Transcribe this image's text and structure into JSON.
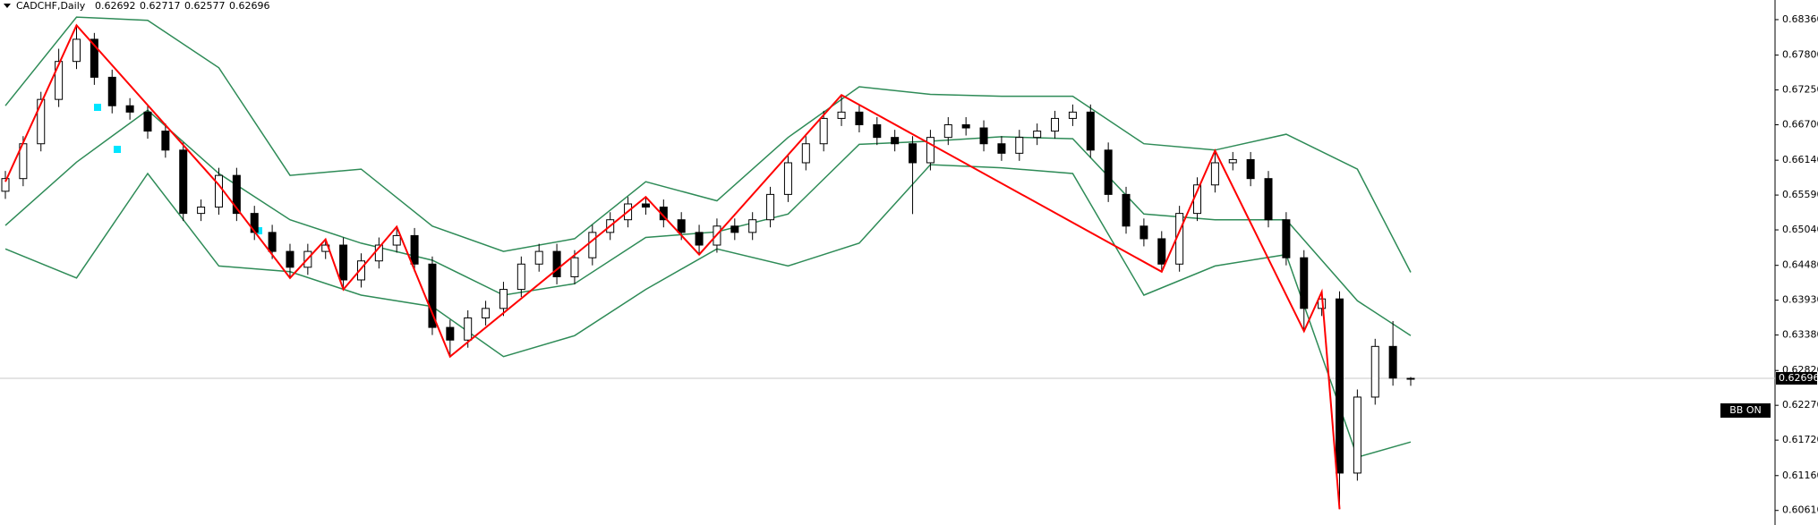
{
  "chart_data": {
    "type": "candlestick",
    "title": "CADCHF,Daily",
    "indicator_label": "BB ON",
    "up_color": "#ffffff",
    "down_color": "#000000",
    "ylim": [
      0.6038,
      0.6867
    ],
    "yticks": [
      {
        "value": 0.6836,
        "label": "0.68360"
      },
      {
        "value": 0.678,
        "label": "0.67800"
      },
      {
        "value": 0.6725,
        "label": "0.67250"
      },
      {
        "value": 0.667,
        "label": "0.66700"
      },
      {
        "value": 0.6614,
        "label": "0.66140"
      },
      {
        "value": 0.6559,
        "label": "0.65590"
      },
      {
        "value": 0.6504,
        "label": "0.65040"
      },
      {
        "value": 0.6448,
        "label": "0.64480"
      },
      {
        "value": 0.6393,
        "label": "0.63930"
      },
      {
        "value": 0.6338,
        "label": "0.63380"
      },
      {
        "value": 0.6282,
        "label": "0.62820"
      },
      {
        "value": 0.6227,
        "label": "0.62270"
      },
      {
        "value": 0.6172,
        "label": "0.61720"
      },
      {
        "value": 0.6116,
        "label": "0.61160"
      },
      {
        "value": 0.6061,
        "label": "0.60610"
      }
    ],
    "open": [
      0.6565,
      0.6585,
      0.664,
      0.671,
      0.677,
      0.6805,
      0.6745,
      0.67,
      0.669,
      0.666,
      0.663,
      0.653,
      0.654,
      0.659,
      0.653,
      0.65,
      0.647,
      0.6445,
      0.647,
      0.648,
      0.6425,
      0.6455,
      0.648,
      0.6495,
      0.645,
      0.635,
      0.633,
      0.6365,
      0.638,
      0.641,
      0.645,
      0.647,
      0.643,
      0.646,
      0.65,
      0.652,
      0.6545,
      0.654,
      0.652,
      0.65,
      0.648,
      0.651,
      0.65,
      0.652,
      0.656,
      0.661,
      0.664,
      0.668,
      0.669,
      0.667,
      0.665,
      0.664,
      0.661,
      0.665,
      0.667,
      0.6665,
      0.664,
      0.6625,
      0.665,
      0.666,
      0.668,
      0.669,
      0.663,
      0.656,
      0.651,
      0.649,
      0.645,
      0.653,
      0.6575,
      0.661,
      0.6615,
      0.6585,
      0.652,
      0.646,
      0.638,
      0.6395,
      0.612,
      0.624,
      0.632,
      0.62692
    ],
    "high": [
      0.6597,
      0.6652,
      0.6722,
      0.679,
      0.6827,
      0.6815,
      0.6757,
      0.6712,
      0.6702,
      0.6672,
      0.6642,
      0.6552,
      0.6602,
      0.6602,
      0.6542,
      0.6512,
      0.6482,
      0.6482,
      0.6489,
      0.6492,
      0.6467,
      0.6492,
      0.6509,
      0.6507,
      0.6462,
      0.6362,
      0.6377,
      0.6392,
      0.6422,
      0.6462,
      0.6482,
      0.6482,
      0.6472,
      0.6512,
      0.6532,
      0.6556,
      0.6557,
      0.6552,
      0.6532,
      0.6512,
      0.6522,
      0.6522,
      0.6532,
      0.6572,
      0.6622,
      0.6652,
      0.6692,
      0.6717,
      0.6702,
      0.6682,
      0.6662,
      0.6652,
      0.6662,
      0.6682,
      0.6682,
      0.6677,
      0.6652,
      0.6662,
      0.6672,
      0.6692,
      0.6702,
      0.6702,
      0.6642,
      0.6572,
      0.6522,
      0.6502,
      0.6542,
      0.6587,
      0.6629,
      0.6627,
      0.6627,
      0.6597,
      0.6532,
      0.6472,
      0.6406,
      0.6407,
      0.6252,
      0.6332,
      0.636,
      0.62717
    ],
    "low": [
      0.6553,
      0.6573,
      0.6628,
      0.6698,
      0.6758,
      0.6733,
      0.6688,
      0.6678,
      0.6648,
      0.6618,
      0.6518,
      0.6518,
      0.6528,
      0.6518,
      0.6488,
      0.6458,
      0.6428,
      0.6433,
      0.6458,
      0.641,
      0.6413,
      0.6443,
      0.6468,
      0.6438,
      0.6338,
      0.6304,
      0.6318,
      0.6353,
      0.6368,
      0.6398,
      0.6438,
      0.6418,
      0.6418,
      0.6448,
      0.6488,
      0.6508,
      0.6528,
      0.6508,
      0.6488,
      0.6465,
      0.6468,
      0.6488,
      0.6488,
      0.6508,
      0.6548,
      0.6598,
      0.6628,
      0.6668,
      0.6658,
      0.6638,
      0.6628,
      0.6529,
      0.6598,
      0.6638,
      0.6653,
      0.6628,
      0.6613,
      0.6613,
      0.6638,
      0.6648,
      0.6668,
      0.6618,
      0.6548,
      0.6498,
      0.6478,
      0.6438,
      0.6438,
      0.6518,
      0.6563,
      0.6598,
      0.6573,
      0.6508,
      0.6448,
      0.6344,
      0.6368,
      0.6063,
      0.6108,
      0.6228,
      0.6258,
      0.62577
    ],
    "close": [
      0.6585,
      0.664,
      0.671,
      0.677,
      0.6805,
      0.6745,
      0.67,
      0.669,
      0.666,
      0.663,
      0.653,
      0.654,
      0.659,
      0.653,
      0.65,
      0.647,
      0.6445,
      0.647,
      0.648,
      0.6425,
      0.6455,
      0.648,
      0.6495,
      0.645,
      0.635,
      0.633,
      0.6365,
      0.638,
      0.641,
      0.645,
      0.647,
      0.643,
      0.646,
      0.65,
      0.652,
      0.6545,
      0.654,
      0.652,
      0.65,
      0.648,
      0.651,
      0.65,
      0.652,
      0.656,
      0.661,
      0.664,
      0.668,
      0.669,
      0.667,
      0.665,
      0.664,
      0.661,
      0.665,
      0.667,
      0.6665,
      0.664,
      0.6625,
      0.665,
      0.666,
      0.668,
      0.669,
      0.663,
      0.656,
      0.651,
      0.649,
      0.645,
      0.653,
      0.6575,
      0.661,
      0.6615,
      0.6585,
      0.652,
      0.646,
      0.638,
      0.6395,
      0.612,
      0.624,
      0.632,
      0.627,
      0.62696
    ],
    "bands": {
      "color": "#2e8b57",
      "x": [
        0,
        4,
        8,
        12,
        16,
        20,
        24,
        28,
        32,
        36,
        40,
        44,
        48,
        52,
        56,
        60,
        64,
        68,
        72,
        76,
        79
      ],
      "upper": [
        0.67,
        0.684,
        0.6835,
        0.676,
        0.659,
        0.66,
        0.651,
        0.647,
        0.649,
        0.658,
        0.655,
        0.665,
        0.673,
        0.6718,
        0.6715,
        0.6715,
        0.664,
        0.663,
        0.6655,
        0.66,
        0.6437
      ],
      "middle": [
        0.6511,
        0.6611,
        0.6693,
        0.6593,
        0.652,
        0.6483,
        0.6456,
        0.6401,
        0.6419,
        0.6492,
        0.6501,
        0.6529,
        0.6639,
        0.6644,
        0.6651,
        0.6648,
        0.6529,
        0.652,
        0.652,
        0.6392,
        0.6337
      ],
      "lower": [
        0.6474,
        0.6428,
        0.6593,
        0.6447,
        0.6438,
        0.6401,
        0.6383,
        0.6304,
        0.6337,
        0.641,
        0.6474,
        0.6447,
        0.6483,
        0.6607,
        0.6602,
        0.6593,
        0.6401,
        0.6447,
        0.6465,
        0.6145,
        0.6169
      ]
    },
    "zigzag": {
      "color": "#ff0000",
      "x": [
        0,
        4,
        12,
        16,
        18,
        19,
        22,
        25,
        36,
        39,
        47,
        65,
        68,
        73,
        74,
        75
      ],
      "values": [
        0.658,
        0.6827,
        0.6575,
        0.6428,
        0.6489,
        0.641,
        0.6509,
        0.6304,
        0.6556,
        0.6465,
        0.6717,
        0.6438,
        0.6629,
        0.6344,
        0.6406,
        0.6063
      ]
    }
  }
}
